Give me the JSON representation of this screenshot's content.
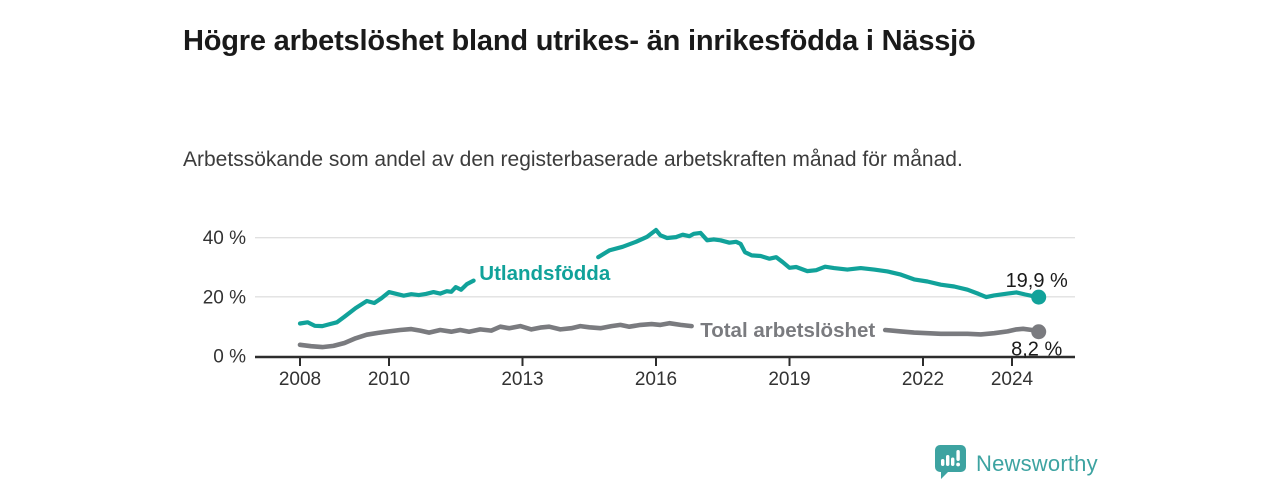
{
  "header": {
    "title": "Högre arbetslöshet bland utrikes- än inrikesfödda i Nässjö",
    "subtitle": "Arbetssökande som andel av den registerbaserade arbetskraften månad för månad."
  },
  "chart_data": {
    "type": "line",
    "title": "Högre arbetslöshet bland utrikes- än inrikesfödda i Nässjö",
    "subtitle": "Arbetssökande som andel av den registerbaserade arbetskraften månad för månad.",
    "unit": "%",
    "xlabel": "",
    "ylabel": "",
    "grid": true,
    "xlim": [
      2007,
      2025.4
    ],
    "ylim": [
      0,
      45
    ],
    "x_ticks": [
      {
        "v": 2008,
        "label": "2008"
      },
      {
        "v": 2010,
        "label": "2010"
      },
      {
        "v": 2013,
        "label": "2013"
      },
      {
        "v": 2016,
        "label": "2016"
      },
      {
        "v": 2019,
        "label": "2019"
      },
      {
        "v": 2022,
        "label": "2022"
      },
      {
        "v": 2024,
        "label": "2024"
      }
    ],
    "y_ticks": [
      {
        "v": 0,
        "label": "0 %"
      },
      {
        "v": 20,
        "label": "20 %"
      },
      {
        "v": 40,
        "label": "40 %"
      }
    ],
    "colors": {
      "axis": "#2d2d2d",
      "grid": "#e0e0e0",
      "tick_text": "#333333",
      "end_label_text": "#1a1a1a"
    },
    "series": [
      {
        "name": "Utlandsfödda",
        "color": "#11a29a",
        "line_width": 4.2,
        "end_value": 19.9,
        "end_label": "19,9 %",
        "end_label_position": "above",
        "inline_label": {
          "text": "Utlandsfödda",
          "x": 2013.5,
          "y": 28
        },
        "segments": [
          [
            [
              2008.0,
              11.0
            ],
            [
              2008.17,
              11.4
            ],
            [
              2008.33,
              10.2
            ],
            [
              2008.5,
              10.1
            ],
            [
              2008.67,
              10.8
            ],
            [
              2008.83,
              11.4
            ],
            [
              2009.0,
              13.3
            ],
            [
              2009.25,
              16.2
            ],
            [
              2009.5,
              18.6
            ],
            [
              2009.67,
              17.9
            ],
            [
              2009.83,
              19.5
            ],
            [
              2010.0,
              21.6
            ],
            [
              2010.17,
              21.0
            ],
            [
              2010.33,
              20.4
            ],
            [
              2010.5,
              20.9
            ],
            [
              2010.67,
              20.6
            ],
            [
              2010.83,
              21.0
            ],
            [
              2011.0,
              21.6
            ],
            [
              2011.15,
              21.1
            ],
            [
              2011.3,
              21.9
            ],
            [
              2011.4,
              21.7
            ],
            [
              2011.5,
              23.3
            ],
            [
              2011.62,
              22.4
            ],
            [
              2011.75,
              24.3
            ],
            [
              2011.9,
              25.5
            ]
          ],
          [
            [
              2014.7,
              33.4
            ],
            [
              2014.95,
              35.7
            ],
            [
              2015.25,
              36.9
            ],
            [
              2015.55,
              38.6
            ],
            [
              2015.8,
              40.3
            ],
            [
              2016.0,
              42.6
            ],
            [
              2016.1,
              40.8
            ],
            [
              2016.25,
              39.9
            ],
            [
              2016.45,
              40.2
            ],
            [
              2016.6,
              41.0
            ],
            [
              2016.75,
              40.5
            ],
            [
              2016.85,
              41.3
            ],
            [
              2017.0,
              41.6
            ],
            [
              2017.15,
              39.1
            ],
            [
              2017.3,
              39.4
            ],
            [
              2017.45,
              39.1
            ],
            [
              2017.65,
              38.3
            ],
            [
              2017.8,
              38.6
            ],
            [
              2017.9,
              37.9
            ],
            [
              2018.0,
              35.1
            ],
            [
              2018.15,
              34.0
            ],
            [
              2018.35,
              33.8
            ],
            [
              2018.55,
              32.9
            ],
            [
              2018.7,
              33.4
            ],
            [
              2018.85,
              31.7
            ],
            [
              2019.0,
              29.8
            ],
            [
              2019.15,
              30.1
            ],
            [
              2019.4,
              28.7
            ],
            [
              2019.6,
              29.0
            ],
            [
              2019.8,
              30.2
            ],
            [
              2020.0,
              29.7
            ],
            [
              2020.3,
              29.2
            ],
            [
              2020.6,
              29.7
            ],
            [
              2020.9,
              29.2
            ],
            [
              2021.2,
              28.6
            ],
            [
              2021.5,
              27.5
            ],
            [
              2021.8,
              25.9
            ],
            [
              2022.1,
              25.2
            ],
            [
              2022.4,
              24.1
            ],
            [
              2022.7,
              23.5
            ],
            [
              2023.0,
              22.4
            ],
            [
              2023.25,
              21.0
            ],
            [
              2023.42,
              19.9
            ],
            [
              2023.6,
              20.5
            ],
            [
              2023.9,
              21.1
            ],
            [
              2024.1,
              21.5
            ],
            [
              2024.3,
              20.8
            ],
            [
              2024.45,
              20.3
            ],
            [
              2024.6,
              19.9
            ]
          ]
        ]
      },
      {
        "name": "Total arbetslöshet",
        "color": "#7a7b7f",
        "line_width": 4.6,
        "end_value": 8.2,
        "end_label": "8,2 %",
        "end_label_position": "below",
        "inline_label": {
          "text": "Total arbetslöshet",
          "x": 2018.96,
          "y": 8.8
        },
        "segments": [
          [
            [
              2008.0,
              3.8
            ],
            [
              2008.25,
              3.3
            ],
            [
              2008.5,
              3.0
            ],
            [
              2008.75,
              3.4
            ],
            [
              2009.0,
              4.4
            ],
            [
              2009.25,
              6.0
            ],
            [
              2009.5,
              7.2
            ],
            [
              2009.75,
              7.8
            ],
            [
              2010.0,
              8.3
            ],
            [
              2010.25,
              8.8
            ],
            [
              2010.5,
              9.1
            ],
            [
              2010.7,
              8.6
            ],
            [
              2010.9,
              7.9
            ],
            [
              2011.15,
              8.8
            ],
            [
              2011.4,
              8.2
            ],
            [
              2011.6,
              8.8
            ],
            [
              2011.8,
              8.2
            ],
            [
              2012.05,
              9.0
            ],
            [
              2012.3,
              8.6
            ],
            [
              2012.5,
              9.9
            ],
            [
              2012.7,
              9.4
            ],
            [
              2012.95,
              10.1
            ],
            [
              2013.2,
              9.0
            ],
            [
              2013.4,
              9.6
            ],
            [
              2013.6,
              9.9
            ],
            [
              2013.85,
              9.0
            ],
            [
              2014.1,
              9.4
            ],
            [
              2014.3,
              10.1
            ],
            [
              2014.5,
              9.7
            ],
            [
              2014.75,
              9.4
            ],
            [
              2015.0,
              10.1
            ],
            [
              2015.2,
              10.5
            ],
            [
              2015.4,
              9.9
            ],
            [
              2015.65,
              10.5
            ],
            [
              2015.9,
              10.8
            ],
            [
              2016.1,
              10.5
            ],
            [
              2016.3,
              11.1
            ],
            [
              2016.55,
              10.5
            ],
            [
              2016.8,
              10.1
            ]
          ],
          [
            [
              2021.15,
              8.8
            ],
            [
              2021.5,
              8.3
            ],
            [
              2021.8,
              7.9
            ],
            [
              2022.1,
              7.7
            ],
            [
              2022.4,
              7.5
            ],
            [
              2022.7,
              7.5
            ],
            [
              2023.0,
              7.5
            ],
            [
              2023.3,
              7.3
            ],
            [
              2023.6,
              7.7
            ],
            [
              2023.9,
              8.3
            ],
            [
              2024.1,
              9.0
            ],
            [
              2024.25,
              9.2
            ],
            [
              2024.45,
              8.8
            ],
            [
              2024.6,
              8.2
            ]
          ]
        ]
      }
    ]
  },
  "footer": {
    "brand": "Newsworthy",
    "logo_icon": "bar-chart-speech-bubble-icon",
    "brand_color": "#3da3a1"
  }
}
